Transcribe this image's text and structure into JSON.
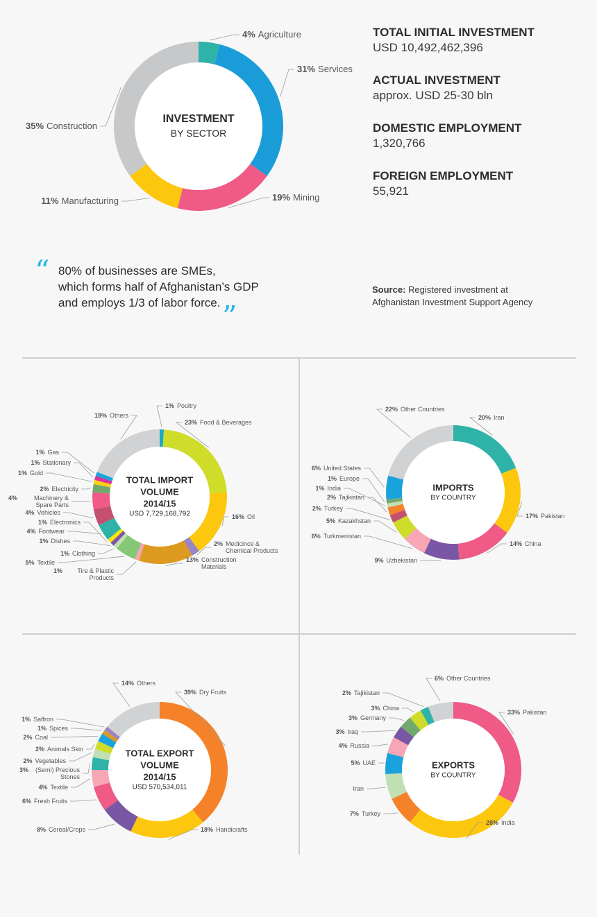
{
  "stats": [
    {
      "heading": "TOTAL INITIAL INVESTMENT",
      "value": "USD 10,492,462,396"
    },
    {
      "heading": "ACTUAL INVESTMENT",
      "value": "approx. USD 25-30 bln"
    },
    {
      "heading": "DOMESTIC EMPLOYMENT",
      "value": "1,320,766"
    },
    {
      "heading": "FOREIGN EMPLOYMENT",
      "value": "55,921"
    }
  ],
  "quote": {
    "line1": "80% of businesses are SMEs,",
    "line2": "which forms half of Afghanistan’s GDP",
    "line3": "and employs 1/3 of labor force.",
    "open_mark": "“",
    "close_mark": "”",
    "mark_color": "#29b6e6"
  },
  "source": {
    "label": "Source:",
    "line1": "Registered investment at",
    "line2": "Afghanistan Investment Support Agency"
  },
  "chart_data": [
    {
      "type": "pie",
      "variant": "donut",
      "center_title": "INVESTMENT",
      "center_sub": "BY SECTOR",
      "center_value": "",
      "slices": [
        {
          "name": "Agriculture",
          "pct_label": "4%",
          "value": 4,
          "color": "#2fb3a8"
        },
        {
          "name": "Services",
          "pct_label": "31%",
          "value": 31,
          "color": "#1a9cd8"
        },
        {
          "name": "Mining",
          "pct_label": "19%",
          "value": 19,
          "color": "#ef5a86"
        },
        {
          "name": "Manufacturing",
          "pct_label": "11%",
          "value": 11,
          "color": "#fdc70e"
        },
        {
          "name": "Construction",
          "pct_label": "35%",
          "value": 35,
          "color": "#c7c8ca"
        }
      ]
    },
    {
      "type": "pie",
      "variant": "donut",
      "center_title": "TOTAL IMPORT VOLUME 2014/15",
      "center_sub": "",
      "center_value": "USD 7,729,168,792",
      "slices": [
        {
          "name": "Poultry",
          "pct_label": "1%",
          "value": 1,
          "color": "#1ba9c9"
        },
        {
          "name": "Food & Beverages",
          "pct_label": "23%",
          "value": 23,
          "color": "#cfdc2a"
        },
        {
          "name": "Oil",
          "pct_label": "16%",
          "value": 16,
          "color": "#fdc70e"
        },
        {
          "name": "Medicince & Chemical Products",
          "pct_label": "2%",
          "value": 2,
          "color": "#9a84c4"
        },
        {
          "name": "Construction Materials",
          "pct_label": "13%",
          "value": 13,
          "color": "#dc9a1f"
        },
        {
          "name": "Tire & Plastic Products",
          "pct_label": "1%",
          "value": 1,
          "color": "#f6a3b5"
        },
        {
          "name": "Textile",
          "pct_label": "5%",
          "value": 5,
          "color": "#86c775"
        },
        {
          "name": "Clothing",
          "pct_label": "1%",
          "value": 1,
          "color": "#c0dfb2"
        },
        {
          "name": "Dishes",
          "pct_label": "1%",
          "value": 1,
          "color": "#7f56a5"
        },
        {
          "name": "Electronics",
          "pct_label": "1%",
          "value": 1,
          "color": "#fde500"
        },
        {
          "name": "Footwear",
          "pct_label": "4%",
          "value": 4,
          "color": "#2fb3a8"
        },
        {
          "name": "Vehicles",
          "pct_label": "4%",
          "value": 4,
          "color": "#c3506f"
        },
        {
          "name": "Machinery & Spare Parts",
          "pct_label": "4%",
          "value": 4,
          "color": "#ef5a86"
        },
        {
          "name": "Electricity",
          "pct_label": "2%",
          "value": 2,
          "color": "#73a86d"
        },
        {
          "name": "Gold",
          "pct_label": "1%",
          "value": 1,
          "color": "#fdd20e"
        },
        {
          "name": "Stationary",
          "pct_label": "1%",
          "value": 1,
          "color": "#d8339b"
        },
        {
          "name": "Gas",
          "pct_label": "1%",
          "value": 1,
          "color": "#1aa2dd"
        },
        {
          "name": "Others",
          "pct_label": "19%",
          "value": 19,
          "color": "#d1d2d4"
        }
      ]
    },
    {
      "type": "pie",
      "variant": "donut",
      "center_title": "IMPORTS",
      "center_sub": "BY COUNTRY",
      "center_value": "",
      "slices": [
        {
          "name": "Iran",
          "pct_label": "20%",
          "value": 20,
          "color": "#2fb3a8"
        },
        {
          "name": "Pakistan",
          "pct_label": "17%",
          "value": 17,
          "color": "#fdc70e"
        },
        {
          "name": "China",
          "pct_label": "14%",
          "value": 14,
          "color": "#ef5a86"
        },
        {
          "name": "Uzbekistan",
          "pct_label": "9%",
          "value": 9,
          "color": "#7957a5"
        },
        {
          "name": "Turkmenistan",
          "pct_label": "6%",
          "value": 6,
          "color": "#f6a6b5"
        },
        {
          "name": "Kazakhstan",
          "pct_label": "5%",
          "value": 5,
          "color": "#cfdc2a"
        },
        {
          "name": "Turkey",
          "pct_label": "2%",
          "value": 2,
          "color": "#c3506f"
        },
        {
          "name": "Tajikistan",
          "pct_label": "2%",
          "value": 2,
          "color": "#f58229"
        },
        {
          "name": "India",
          "pct_label": "1%",
          "value": 1,
          "color": "#c0dfb2"
        },
        {
          "name": "Europe",
          "pct_label": "1%",
          "value": 1,
          "color": "#73a86d"
        },
        {
          "name": "United States",
          "pct_label": "6%",
          "value": 6,
          "color": "#1aa2dd"
        },
        {
          "name": "Other Countries",
          "pct_label": "22%",
          "value": 22,
          "color": "#d1d2d4"
        }
      ]
    },
    {
      "type": "pie",
      "variant": "donut",
      "center_title": "TOTAL EXPORT VOLUME 2014/15",
      "center_sub": "",
      "center_value": "USD 570,534,011",
      "slices": [
        {
          "name": "Dry Fruits",
          "pct_label": "39%",
          "value": 39,
          "color": "#f58229"
        },
        {
          "name": "Handicrafts",
          "pct_label": "18%",
          "value": 18,
          "color": "#fdc70e"
        },
        {
          "name": "Cereal/Crops",
          "pct_label": "8%",
          "value": 8,
          "color": "#7957a5"
        },
        {
          "name": "Fresh Fruits",
          "pct_label": "6%",
          "value": 6,
          "color": "#ef5a86"
        },
        {
          "name": "Textile",
          "pct_label": "4%",
          "value": 4,
          "color": "#f6a6b5"
        },
        {
          "name": "(Semi) Precious Stones",
          "pct_label": "3%",
          "value": 3,
          "color": "#2fb3a8"
        },
        {
          "name": "Vegetables",
          "pct_label": "2%",
          "value": 2,
          "color": "#c0dfb2"
        },
        {
          "name": "Animals Skin",
          "pct_label": "2%",
          "value": 2,
          "color": "#cfdc2a"
        },
        {
          "name": "Coal",
          "pct_label": "2%",
          "value": 2,
          "color": "#1aa2dd"
        },
        {
          "name": "Spices",
          "pct_label": "1%",
          "value": 1,
          "color": "#dc9a1f"
        },
        {
          "name": "Saffron",
          "pct_label": "1%",
          "value": 1,
          "color": "#9a84c4"
        },
        {
          "name": "Others",
          "pct_label": "14%",
          "value": 14,
          "color": "#d1d2d4"
        }
      ]
    },
    {
      "type": "pie",
      "variant": "donut",
      "center_title": "EXPORTS",
      "center_sub": "BY COUNTRY",
      "center_value": "",
      "slices": [
        {
          "name": "Pakistan",
          "pct_label": "33%",
          "value": 33,
          "color": "#ef5a86"
        },
        {
          "name": "India",
          "pct_label": "28%",
          "value": 28,
          "color": "#fdc70e"
        },
        {
          "name": "Turkey",
          "pct_label": "7%",
          "value": 7,
          "color": "#f58229"
        },
        {
          "name": "Iran",
          "pct_label": "",
          "value": 6,
          "color": "#c0dfb2"
        },
        {
          "name": "UAE",
          "pct_label": "5%",
          "value": 5,
          "color": "#1aa2dd"
        },
        {
          "name": "Russia",
          "pct_label": "4%",
          "value": 4,
          "color": "#f6a6b5"
        },
        {
          "name": "Iraq",
          "pct_label": "3%",
          "value": 3,
          "color": "#7957a5"
        },
        {
          "name": "Germany",
          "pct_label": "3%",
          "value": 3,
          "color": "#73a86d"
        },
        {
          "name": "China",
          "pct_label": "3%",
          "value": 3,
          "color": "#cfdc2a"
        },
        {
          "name": "Tajikistan",
          "pct_label": "2%",
          "value": 2,
          "color": "#2fb3a8"
        },
        {
          "name": "Other Countries",
          "pct_label": "6%",
          "value": 6,
          "color": "#d1d2d4"
        }
      ]
    }
  ]
}
